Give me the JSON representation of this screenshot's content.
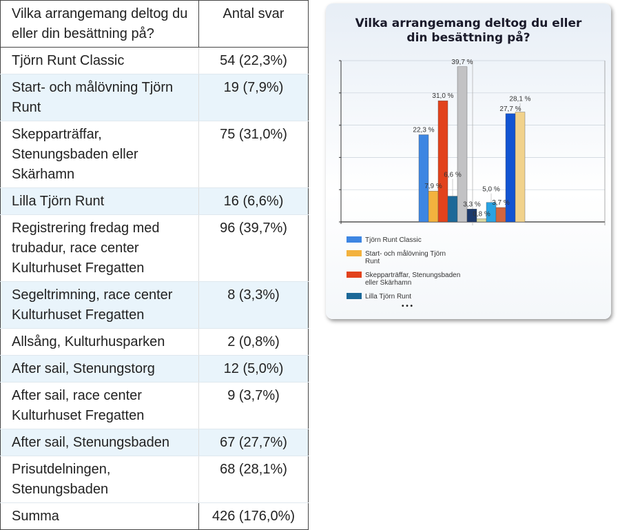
{
  "table": {
    "headers": [
      "Vilka arrangemang deltog du eller din besättning på?",
      "Antal svar"
    ],
    "rows": [
      [
        "Tjörn Runt Classic",
        "54 (22,3%)"
      ],
      [
        "Start- och målövning Tjörn Runt",
        "19 (7,9%)"
      ],
      [
        "Skepparträffar, Stenungsbaden eller Skärhamn",
        "75 (31,0%)"
      ],
      [
        "Lilla Tjörn Runt",
        "16 (6,6%)"
      ],
      [
        "Registrering fredag  med trubadur, race center Kulturhuset Fregatten",
        "96 (39,7%)"
      ],
      [
        "Segeltrimning, race center Kulturhuset Fregatten",
        "8 (3,3%)"
      ],
      [
        "Allsång, Kulturhusparken",
        "2 (0,8%)"
      ],
      [
        "After sail, Stenungstorg",
        "12 (5,0%)"
      ],
      [
        "After sail, race center Kulturhuset Fregatten",
        "9 (3,7%)"
      ],
      [
        "After sail, Stenungsbaden",
        "67 (27,7%)"
      ],
      [
        "Prisutdelningen, Stenungsbaden",
        "68 (28,1%)"
      ]
    ],
    "total": [
      "Summa",
      "426 (176,0%)"
    ]
  },
  "chart_data": {
    "type": "bar",
    "title": "Vilka arrangemang deltog du eller din besättning på?",
    "ylim": [
      0,
      41.25
    ],
    "grid": true,
    "legend_placement": "bottom",
    "series": [
      {
        "name": "Tjörn Runt Classic",
        "value": 22.3,
        "label": "22,3 %",
        "color": "#3d86e2"
      },
      {
        "name": "Start- och målövning Tjörn Runt",
        "value": 7.9,
        "label": "7,9 %",
        "color": "#f3b23e"
      },
      {
        "name": "Skepparträffar, Stenungsbaden eller Skärhamn",
        "value": 31.0,
        "label": "31,0 %",
        "color": "#e2421c"
      },
      {
        "name": "Lilla Tjörn Runt",
        "value": 6.6,
        "label": "6,6 %",
        "color": "#1c6898"
      },
      {
        "value": 39.7,
        "label": "39,7 %",
        "color": "#c2c2c4"
      },
      {
        "value": 3.3,
        "label": "3,3 %",
        "color": "#1c3a6c"
      },
      {
        "value": 0.8,
        "label": "0,8 %",
        "color": "#d8d8a0"
      },
      {
        "value": 5.0,
        "label": "5,0 %",
        "color": "#2aa2e2"
      },
      {
        "value": 3.7,
        "label": "3,7 %",
        "color": "#d2653e"
      },
      {
        "value": 27.7,
        "label": "27,7 %",
        "color": "#1254d2"
      },
      {
        "value": 28.1,
        "label": "28,1 %",
        "color": "#f1d28c"
      }
    ],
    "legend_more": "• • •"
  }
}
